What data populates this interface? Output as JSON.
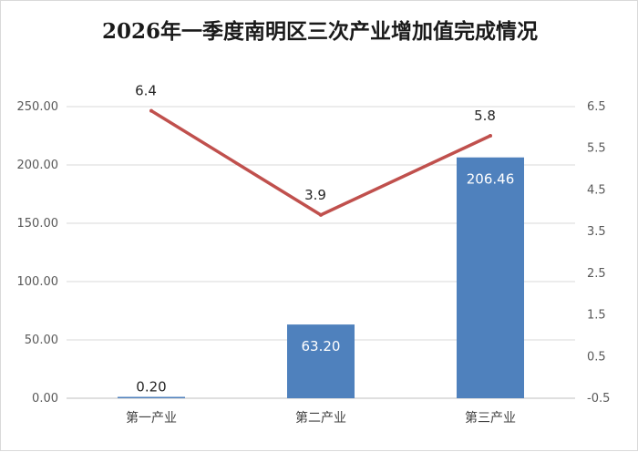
{
  "chart_data": {
    "type": "bar",
    "title": "2026年一季度南明区三次产业增加值完成情况",
    "categories": [
      "第一产业",
      "第二产业",
      "第三产业"
    ],
    "series": [
      {
        "type": "bar",
        "axis": "left",
        "color": "#4f81bd",
        "values": [
          0.2,
          63.2,
          206.46
        ],
        "labels": [
          "0.20",
          "63.20",
          "206.46"
        ]
      },
      {
        "type": "line",
        "axis": "right",
        "color": "#c0504d",
        "values": [
          6.4,
          3.9,
          5.8
        ],
        "labels": [
          "6.4",
          "3.9",
          "5.8"
        ]
      }
    ],
    "left_axis": {
      "ylim": [
        0,
        250
      ],
      "ticks": [
        "0.00",
        "50.00",
        "100.00",
        "150.00",
        "200.00",
        "250.00"
      ]
    },
    "right_axis": {
      "ylim": [
        -0.5,
        6.5
      ],
      "ticks": [
        "-0.5",
        "0.5",
        "1.5",
        "2.5",
        "3.5",
        "4.5",
        "5.5",
        "6.5"
      ]
    },
    "grid": true,
    "legend": "none"
  }
}
